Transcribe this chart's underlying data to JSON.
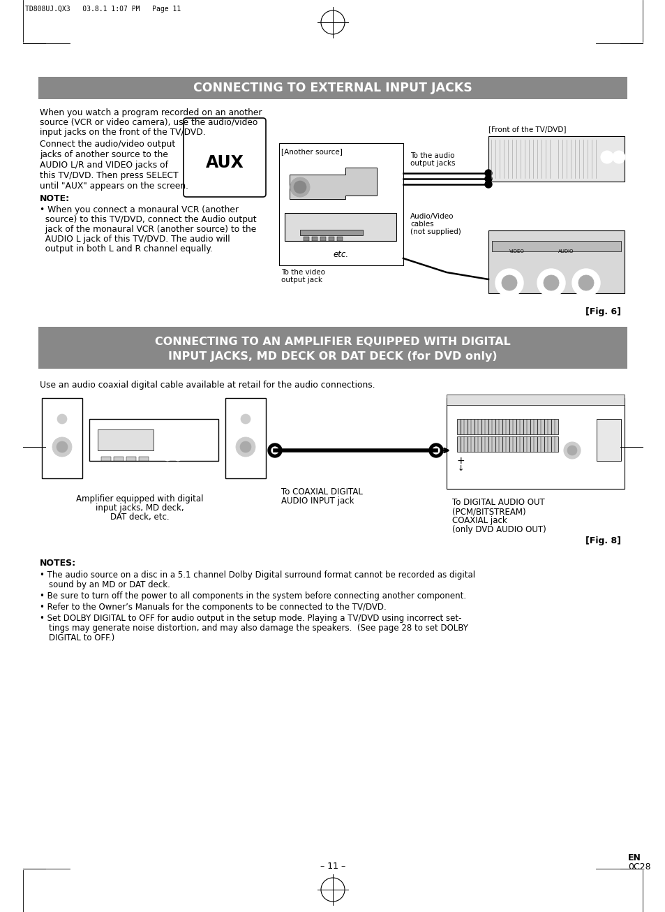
{
  "background_color": "#ffffff",
  "page_width": 9.54,
  "page_height": 13.06,
  "header_text": "TD808UJ.QX3   03.8.1 1:07 PM   Page 11",
  "section1_title": "CONNECTING TO EXTERNAL INPUT JACKS",
  "section1_title_bg": "#888888",
  "section1_title_color": "#ffffff",
  "section2_title_line1": "CONNECTING TO AN AMPLIFIER EQUIPPED WITH DIGITAL",
  "section2_title_line2": "INPUT JACKS, MD DECK OR DAT DECK (for DVD only)",
  "section2_title_bg": "#888888",
  "section2_title_color": "#ffffff",
  "footer_page": "– 11 –",
  "footer_en": "EN",
  "footer_code": "0C28"
}
